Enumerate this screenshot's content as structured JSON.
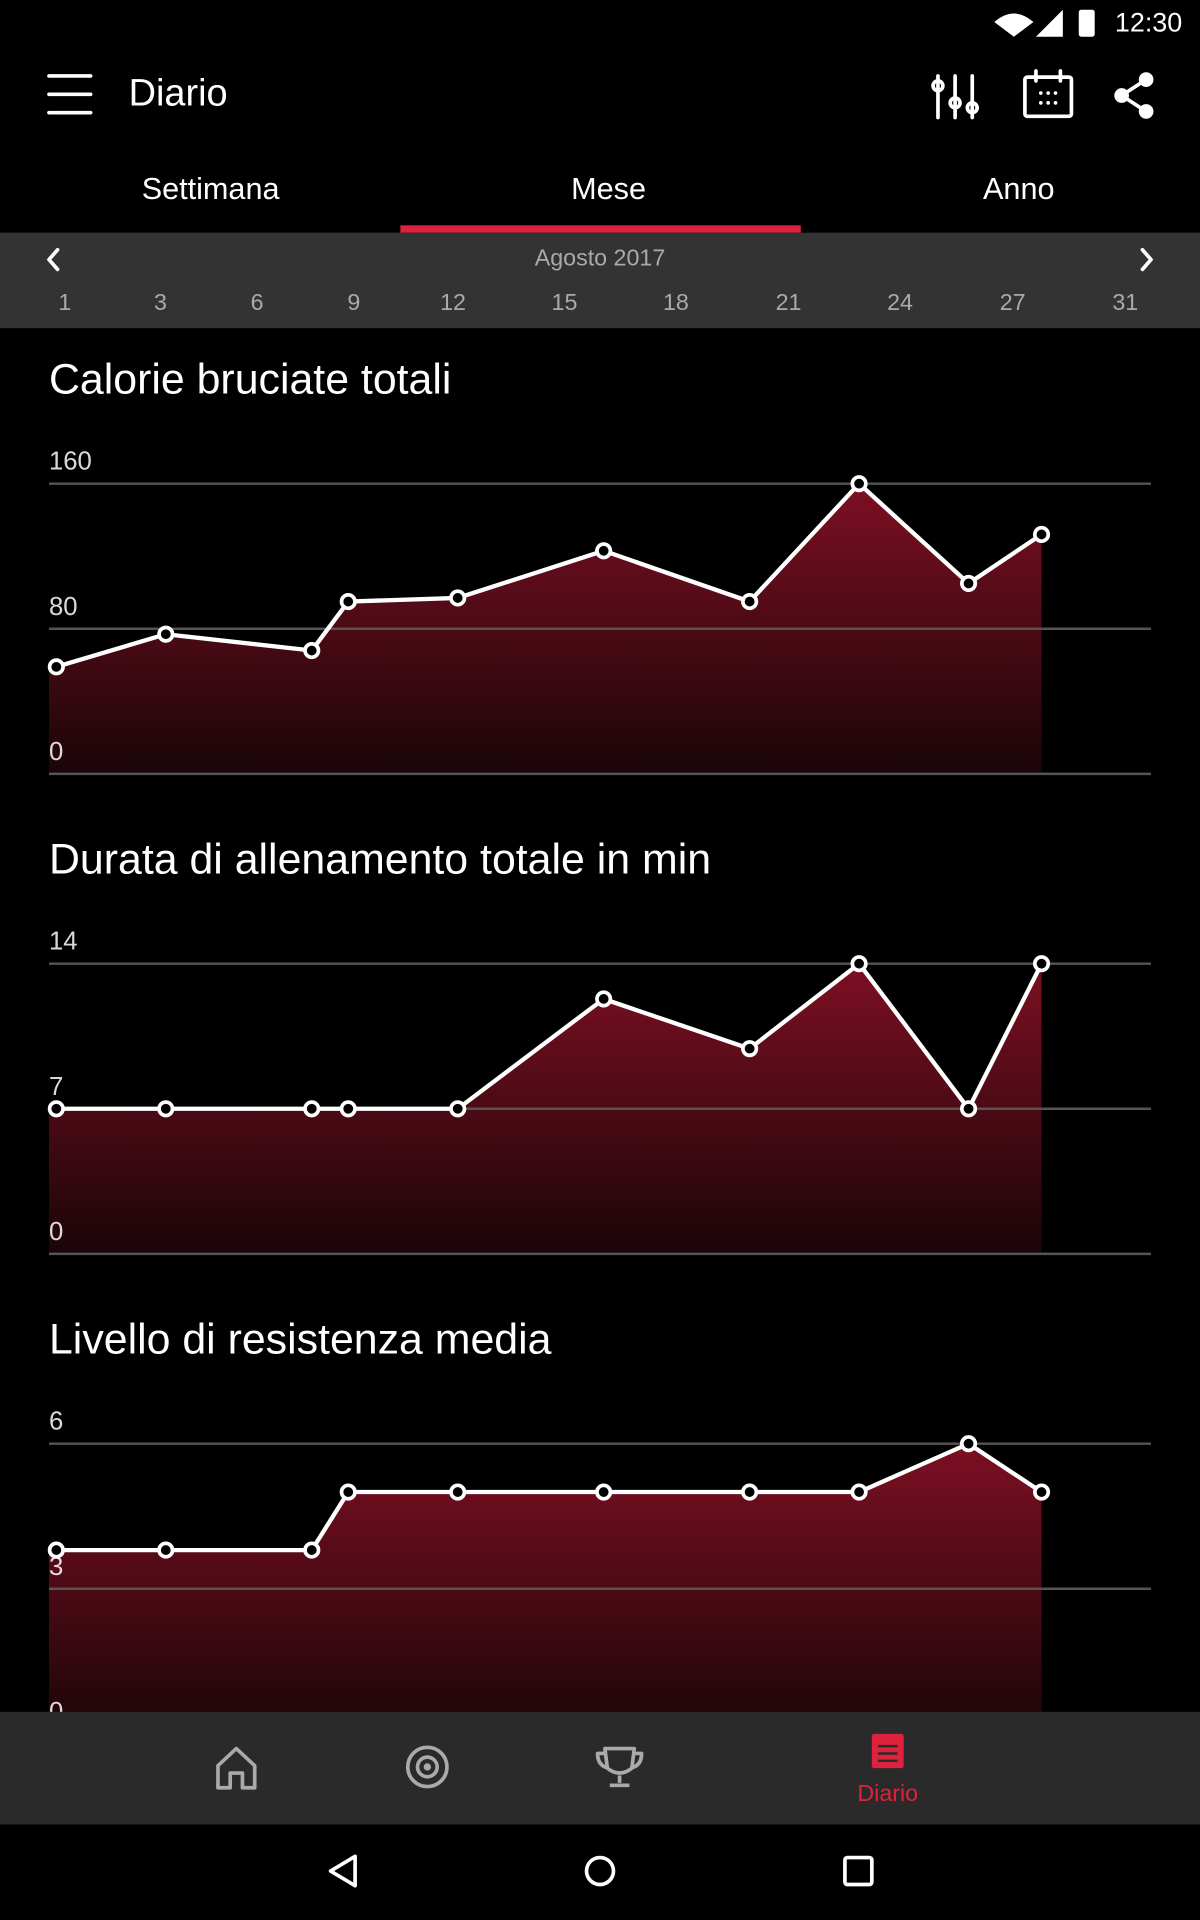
{
  "status_bar": {
    "time": "12:30"
  },
  "app_bar": {
    "title": "Diario"
  },
  "tabs": [
    "Settimana",
    "Mese",
    "Anno"
  ],
  "period": {
    "label": "Agosto 2017",
    "days": [
      1,
      3,
      6,
      9,
      12,
      15,
      18,
      21,
      24,
      27,
      31
    ]
  },
  "chart_data": [
    {
      "type": "area",
      "title": "Calorie bruciate totali",
      "color": "#7d0f22",
      "x": [
        1,
        4,
        8,
        9,
        12,
        16,
        20,
        23,
        26,
        28
      ],
      "values": [
        59,
        77,
        68,
        95,
        97,
        123,
        95,
        160,
        105,
        132
      ],
      "xlim": [
        1,
        31
      ],
      "ylim": [
        0,
        160
      ],
      "yticks": [
        0,
        80,
        160
      ],
      "grid": true
    },
    {
      "type": "area",
      "title": "Durata di allenamento totale in min",
      "color": "#7d0f22",
      "x": [
        1,
        4,
        8,
        9,
        12,
        16,
        20,
        23,
        26,
        28
      ],
      "values": [
        7,
        7,
        7,
        7,
        7,
        12.3,
        9.9,
        14,
        7,
        14
      ],
      "xlim": [
        1,
        31
      ],
      "ylim": [
        0,
        14
      ],
      "yticks": [
        0,
        7,
        14
      ],
      "grid": true
    },
    {
      "type": "area",
      "title": "Livello di resistenza media",
      "color": "#7d0f22",
      "x": [
        1,
        4,
        8,
        9,
        12,
        16,
        20,
        23,
        26,
        28
      ],
      "values": [
        3.8,
        3.8,
        3.8,
        5,
        5,
        5,
        5,
        5,
        6,
        5
      ],
      "xlim": [
        1,
        31
      ],
      "ylim": [
        0,
        6
      ],
      "yticks": [
        0,
        3,
        6
      ],
      "grid": true
    }
  ],
  "bottom_nav": {
    "label": "Diario"
  }
}
